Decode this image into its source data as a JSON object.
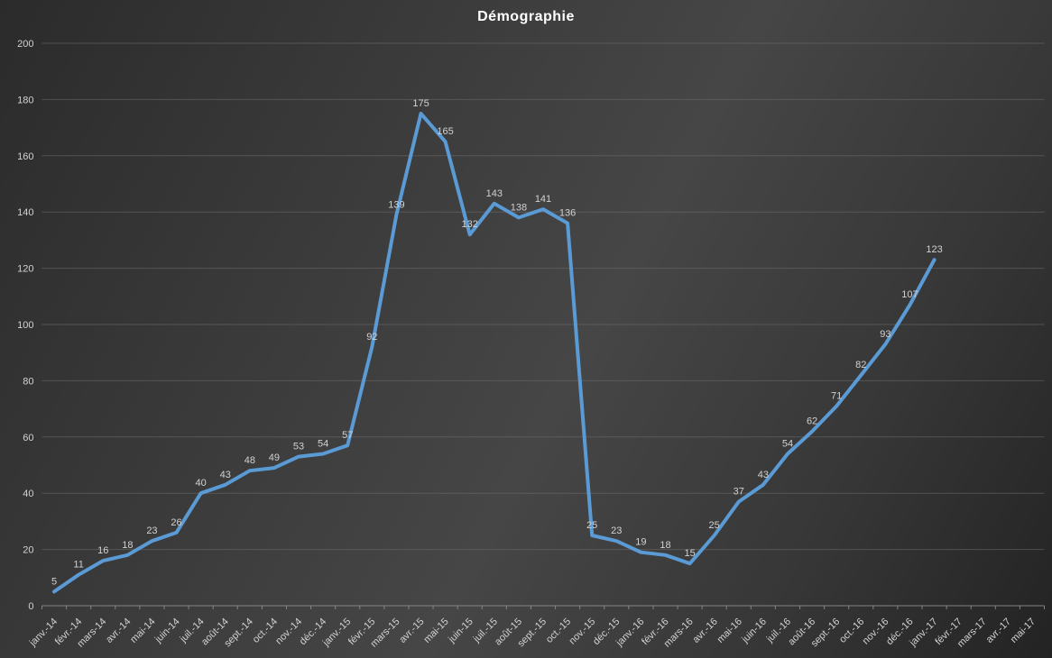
{
  "title": "Démographie",
  "colors": {
    "line": "#5B9BD5",
    "gridline": "#6e6e6e",
    "axis_line": "#8c8c8c",
    "tick": "#8c8c8c",
    "label_text": "#d2d2d2",
    "title_text": "#ffffff",
    "background_dark": "#2b2b2b",
    "background_light": "#464646"
  },
  "chart_data": {
    "type": "line",
    "title": "Démographie",
    "xlabel": "",
    "ylabel": "",
    "ylim": [
      0,
      200
    ],
    "ytick_step": 20,
    "grid": true,
    "legend_position": "none",
    "data_labels": true,
    "categories": [
      "janv.-14",
      "févr.-14",
      "mars-14",
      "avr.-14",
      "mai-14",
      "juin-14",
      "juil.-14",
      "août-14",
      "sept.-14",
      "oct.-14",
      "nov.-14",
      "déc.-14",
      "janv.-15",
      "févr.-15",
      "mars-15",
      "avr.-15",
      "mai-15",
      "juin-15",
      "juil.-15",
      "août-15",
      "sept.-15",
      "oct.-15",
      "nov.-15",
      "déc.-15",
      "janv.-16",
      "févr.-16",
      "mars-16",
      "avr.-16",
      "mai-16",
      "juin-16",
      "juil.-16",
      "août-16",
      "sept.-16",
      "oct.-16",
      "nov.-16",
      "déc.-16",
      "janv.-17",
      "févr.-17",
      "mars-17",
      "avr.-17",
      "mai-17"
    ],
    "series": [
      {
        "name": "Démographie",
        "values": [
          5,
          11,
          16,
          18,
          23,
          26,
          40,
          43,
          48,
          49,
          53,
          54,
          57,
          92,
          139,
          175,
          165,
          132,
          143,
          138,
          141,
          136,
          25,
          23,
          19,
          18,
          15,
          25,
          37,
          43,
          54,
          62,
          71,
          82,
          93,
          107,
          123,
          null,
          null,
          null,
          null
        ]
      }
    ]
  }
}
